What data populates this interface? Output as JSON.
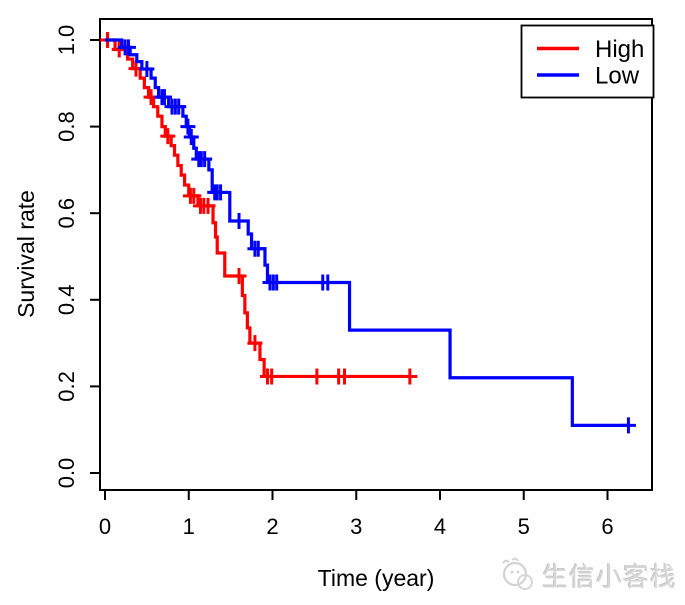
{
  "watermark": {
    "text": "生信小客栈",
    "logo": "chick-sketch-icon",
    "color": "#d6d6d6"
  },
  "chart_data": {
    "type": "line",
    "variant": "kaplan-meier-step",
    "title": "",
    "xlabel": "Time (year)",
    "ylabel": "Survival rate",
    "xlim": [
      0,
      6.55
    ],
    "ylim": [
      0,
      1.0
    ],
    "xticks": [
      0,
      1,
      2,
      3,
      4,
      5,
      6
    ],
    "yticks": [
      "0.0",
      "0.2",
      "0.4",
      "0.6",
      "0.8",
      "1.0"
    ],
    "grid": false,
    "legend": {
      "position": "top-right",
      "entries": [
        {
          "label": "High",
          "color": "#FF0000"
        },
        {
          "label": "Low",
          "color": "#0000FF"
        }
      ]
    },
    "series": [
      {
        "name": "High",
        "color": "#FF0000",
        "steps": [
          [
            0,
            1.0
          ],
          [
            0.12,
            0.978
          ],
          [
            0.27,
            0.956
          ],
          [
            0.33,
            0.934
          ],
          [
            0.42,
            0.912
          ],
          [
            0.47,
            0.89
          ],
          [
            0.52,
            0.868
          ],
          [
            0.58,
            0.846
          ],
          [
            0.63,
            0.824
          ],
          [
            0.68,
            0.8
          ],
          [
            0.72,
            0.778
          ],
          [
            0.79,
            0.756
          ],
          [
            0.83,
            0.734
          ],
          [
            0.87,
            0.71
          ],
          [
            0.91,
            0.688
          ],
          [
            0.95,
            0.665
          ],
          [
            1.0,
            0.64
          ],
          [
            1.11,
            0.617
          ],
          [
            1.29,
            0.578
          ],
          [
            1.32,
            0.545
          ],
          [
            1.34,
            0.508
          ],
          [
            1.43,
            0.455
          ],
          [
            1.64,
            0.41
          ],
          [
            1.67,
            0.37
          ],
          [
            1.7,
            0.335
          ],
          [
            1.73,
            0.3
          ],
          [
            1.85,
            0.262
          ],
          [
            1.9,
            0.223
          ],
          [
            3.66,
            0.223
          ]
        ],
        "censors": [
          [
            0.03,
            1.0
          ],
          [
            0.17,
            0.978
          ],
          [
            0.37,
            0.934
          ],
          [
            0.55,
            0.868
          ],
          [
            0.75,
            0.778
          ],
          [
            1.02,
            0.64
          ],
          [
            1.06,
            0.64
          ],
          [
            1.14,
            0.617
          ],
          [
            1.18,
            0.617
          ],
          [
            1.23,
            0.617
          ],
          [
            1.6,
            0.455
          ],
          [
            1.79,
            0.3
          ],
          [
            1.94,
            0.223
          ],
          [
            1.99,
            0.223
          ],
          [
            2.53,
            0.223
          ],
          [
            2.79,
            0.223
          ],
          [
            2.86,
            0.223
          ],
          [
            3.64,
            0.223
          ]
        ]
      },
      {
        "name": "Low",
        "color": "#0000FF",
        "steps": [
          [
            0,
            1.0
          ],
          [
            0.2,
            0.983
          ],
          [
            0.3,
            0.966
          ],
          [
            0.38,
            0.95
          ],
          [
            0.44,
            0.933
          ],
          [
            0.55,
            0.912
          ],
          [
            0.6,
            0.89
          ],
          [
            0.64,
            0.868
          ],
          [
            0.76,
            0.846
          ],
          [
            0.93,
            0.824
          ],
          [
            0.97,
            0.8
          ],
          [
            1.01,
            0.776
          ],
          [
            1.06,
            0.75
          ],
          [
            1.09,
            0.725
          ],
          [
            1.24,
            0.7
          ],
          [
            1.28,
            0.648
          ],
          [
            1.49,
            0.582
          ],
          [
            1.71,
            0.552
          ],
          [
            1.75,
            0.518
          ],
          [
            1.91,
            0.48
          ],
          [
            1.94,
            0.44
          ],
          [
            2.92,
            0.33
          ],
          [
            4.12,
            0.22
          ],
          [
            5.58,
            0.11
          ],
          [
            6.27,
            0.11
          ]
        ],
        "censors": [
          [
            0.24,
            0.983
          ],
          [
            0.28,
            0.983
          ],
          [
            0.5,
            0.933
          ],
          [
            0.68,
            0.868
          ],
          [
            0.71,
            0.868
          ],
          [
            0.8,
            0.846
          ],
          [
            0.84,
            0.846
          ],
          [
            0.88,
            0.846
          ],
          [
            0.99,
            0.8
          ],
          [
            1.03,
            0.776
          ],
          [
            1.12,
            0.725
          ],
          [
            1.15,
            0.725
          ],
          [
            1.19,
            0.725
          ],
          [
            1.31,
            0.648
          ],
          [
            1.34,
            0.648
          ],
          [
            1.38,
            0.648
          ],
          [
            1.6,
            0.582
          ],
          [
            1.79,
            0.518
          ],
          [
            1.83,
            0.518
          ],
          [
            1.97,
            0.44
          ],
          [
            2.01,
            0.44
          ],
          [
            2.05,
            0.44
          ],
          [
            2.6,
            0.44
          ],
          [
            2.66,
            0.44
          ],
          [
            6.25,
            0.11
          ]
        ]
      }
    ]
  }
}
